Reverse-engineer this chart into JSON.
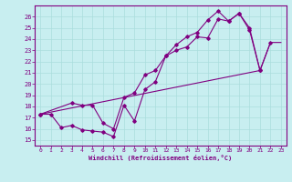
{
  "xlabel": "Windchill (Refroidissement éolien,°C)",
  "bg_color": "#c8eef0",
  "line_color": "#800080",
  "grid_color": "#aadddd",
  "xlim": [
    -0.5,
    23.5
  ],
  "ylim": [
    14.5,
    27.0
  ],
  "xticks": [
    0,
    1,
    2,
    3,
    4,
    5,
    6,
    7,
    8,
    9,
    10,
    11,
    12,
    13,
    14,
    15,
    16,
    17,
    18,
    19,
    20,
    21,
    22,
    23
  ],
  "yticks": [
    15,
    16,
    17,
    18,
    19,
    20,
    21,
    22,
    23,
    24,
    25,
    26
  ],
  "line1_x": [
    0,
    1,
    2,
    3,
    4,
    5,
    6,
    7,
    8,
    9,
    10,
    11,
    12,
    13,
    14,
    15,
    16,
    17,
    18,
    19,
    20,
    21,
    22
  ],
  "line1_y": [
    17.3,
    17.3,
    16.1,
    16.3,
    15.9,
    15.8,
    15.7,
    15.3,
    18.1,
    16.7,
    19.5,
    20.2,
    22.5,
    23.0,
    23.3,
    24.2,
    24.1,
    25.8,
    25.6,
    26.3,
    25.0,
    21.2,
    23.7
  ],
  "line2_x": [
    0,
    3,
    4,
    5,
    6,
    7,
    8,
    9,
    10,
    11,
    12,
    13,
    14,
    15,
    16,
    17,
    18,
    19,
    20,
    21
  ],
  "line2_y": [
    17.3,
    18.3,
    18.1,
    18.1,
    16.5,
    16.0,
    18.8,
    19.2,
    20.8,
    21.2,
    22.5,
    23.5,
    24.2,
    24.6,
    25.7,
    26.5,
    25.6,
    26.3,
    24.8,
    21.2
  ],
  "line3_x": [
    0,
    21,
    22,
    23
  ],
  "line3_y": [
    17.3,
    21.2,
    23.7,
    23.7
  ]
}
